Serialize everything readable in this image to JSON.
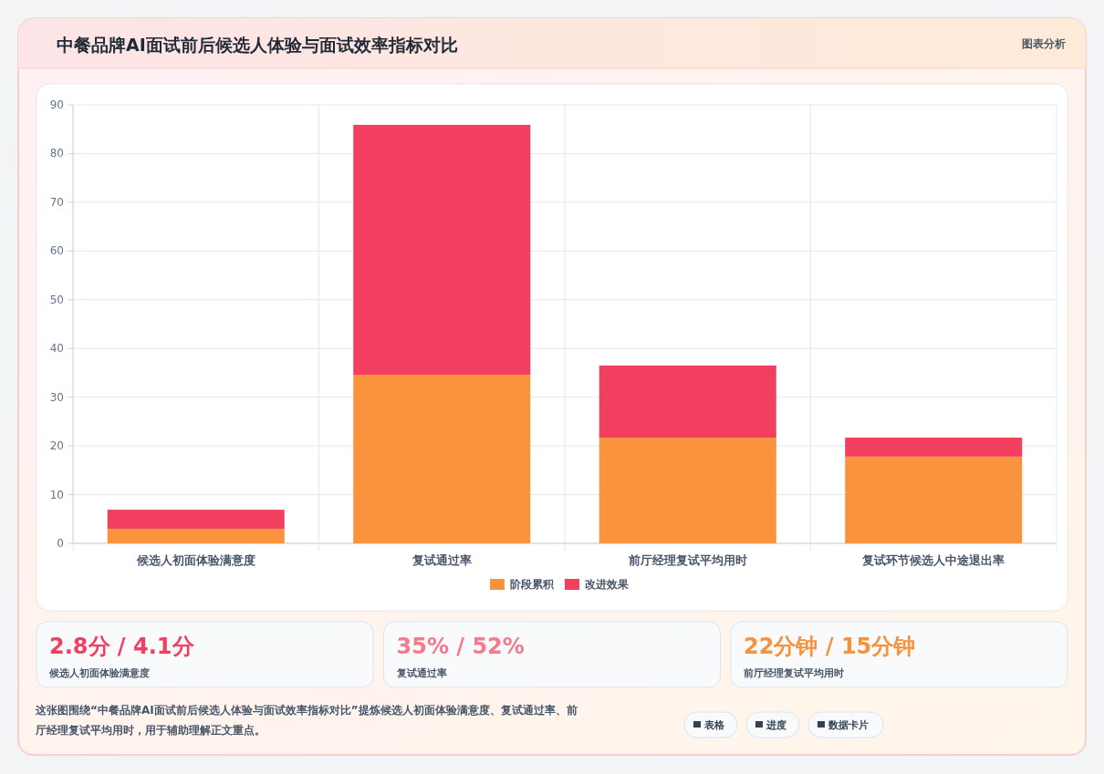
{
  "chart_data": {
    "type": "bar",
    "title": "中餐品牌AI面试前后候选人体验与面试效率指标对比",
    "categories": [
      "候选人初面体验满意度",
      "复试通过率",
      "前厅经理复试平均用时",
      "复试环节候选人中途退出率"
    ],
    "series": [
      {
        "name": "阶段累积",
        "color": "#f9933e",
        "values": [
          3.0,
          34.6,
          21.7,
          17.8
        ]
      },
      {
        "name": "改进效果",
        "color": "#f23f5f",
        "values": [
          3.9,
          51.3,
          14.8,
          3.9
        ]
      }
    ],
    "stacked": true,
    "ylim": [
      0,
      90
    ],
    "yticks": [
      0,
      10,
      20,
      30,
      40,
      50,
      60,
      70,
      80,
      90
    ],
    "grid": true,
    "legend": "bottom",
    "annotations": [
      "图表分析",
      "2.8分 / 4.1分",
      "候选人初面体验满意度",
      "35% / 52%",
      "复试通过率",
      "22分钟 / 15分钟",
      "前厅经理复试平均用时",
      "这张图围绕“中餐品牌AI面试前后候选人体验与面试效率指标对比”提炼候选人初面体验满意度、复试通过率、前厅经理复试平均用时，用于辅助理解正文重点。",
      "表格",
      "进度",
      "数据卡片"
    ]
  }
}
